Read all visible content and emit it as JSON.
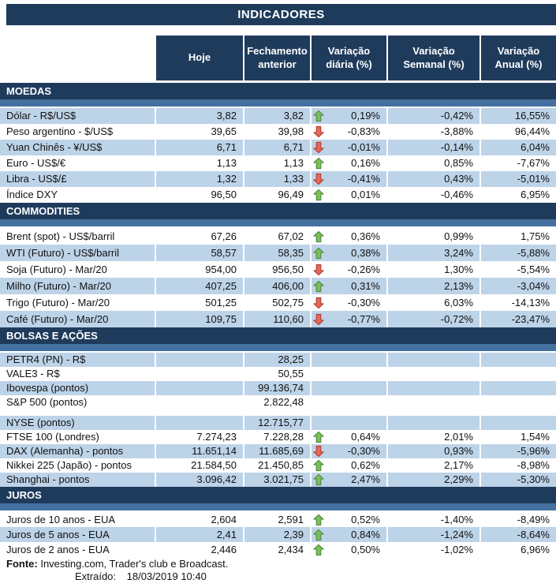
{
  "title": "INDICADORES",
  "columns": [
    "Hoje",
    "Fechamento anterior",
    "Variação diária (%)",
    "Variação Semanal (%)",
    "Variação Anual (%)"
  ],
  "colors": {
    "navy": "#1f3b5c",
    "stripe": "#44719f",
    "row_shaded": "#bdd3e8",
    "arrow_up_fill": "#7dbe5a",
    "arrow_up_stroke": "#4a8a3c",
    "arrow_down_fill": "#e26a5a",
    "arrow_down_stroke": "#b13a30"
  },
  "chart_data": {
    "type": "table",
    "sections": [
      {
        "name": "MOEDAS",
        "rows": [
          {
            "label": "Dólar - R$/US$",
            "hoje": "3,82",
            "fech": "3,82",
            "arrow": "up",
            "vd": "0,19%",
            "vs": "-0,42%",
            "va": "16,55%",
            "shaded": true
          },
          {
            "label": "Peso argentino - $/US$",
            "hoje": "39,65",
            "fech": "39,98",
            "arrow": "down",
            "vd": "-0,83%",
            "vs": "-3,88%",
            "va": "96,44%",
            "shaded": false
          },
          {
            "label": "Yuan Chinês - ¥/US$",
            "hoje": "6,71",
            "fech": "6,71",
            "arrow": "down",
            "vd": "-0,01%",
            "vs": "-0,14%",
            "va": "6,04%",
            "shaded": true
          },
          {
            "label": "Euro - US$/€",
            "hoje": "1,13",
            "fech": "1,13",
            "arrow": "up",
            "vd": "0,16%",
            "vs": "0,85%",
            "va": "-7,67%",
            "shaded": false
          },
          {
            "label": "Libra - US$/£",
            "hoje": "1,32",
            "fech": "1,33",
            "arrow": "down",
            "vd": "-0,41%",
            "vs": "0,43%",
            "va": "-5,01%",
            "shaded": true
          },
          {
            "label": "Índice DXY",
            "hoje": "96,50",
            "fech": "96,49",
            "arrow": "up",
            "vd": "0,01%",
            "vs": "-0,46%",
            "va": "6,95%",
            "shaded": false
          }
        ]
      },
      {
        "name": "COMMODITIES",
        "rows": [
          {
            "label": "Brent (spot) - US$/barril",
            "hoje": "67,26",
            "fech": "67,02",
            "arrow": "up",
            "vd": "0,36%",
            "vs": "0,99%",
            "va": "1,75%",
            "shaded": false
          },
          {
            "label": "WTI (Futuro) - US$/barril",
            "hoje": "58,57",
            "fech": "58,35",
            "arrow": "up",
            "vd": "0,38%",
            "vs": "3,24%",
            "va": "-5,88%",
            "shaded": true
          },
          {
            "label": "Soja (Futuro) - Mar/20",
            "hoje": "954,00",
            "fech": "956,50",
            "arrow": "down",
            "vd": "-0,26%",
            "vs": "1,30%",
            "va": "-5,54%",
            "shaded": false
          },
          {
            "label": "Milho (Futuro) - Mar/20",
            "hoje": "407,25",
            "fech": "406,00",
            "arrow": "up",
            "vd": "0,31%",
            "vs": "2,13%",
            "va": "-3,04%",
            "shaded": true
          },
          {
            "label": "Trigo (Futuro) - Mar/20",
            "hoje": "501,25",
            "fech": "502,75",
            "arrow": "down",
            "vd": "-0,30%",
            "vs": "6,03%",
            "va": "-14,13%",
            "shaded": false
          },
          {
            "label": "Café (Futuro) - Mar/20",
            "hoje": "109,75",
            "fech": "110,60",
            "arrow": "down",
            "vd": "-0,77%",
            "vs": "-0,72%",
            "va": "-23,47%",
            "shaded": true
          }
        ]
      },
      {
        "name": "BOLSAS E AÇÕES",
        "rows": [
          {
            "label": "PETR4 (PN) - R$",
            "hoje": "",
            "fech": "28,25",
            "arrow": null,
            "vd": "",
            "vs": "",
            "va": "",
            "shaded": true
          },
          {
            "label": "VALE3 - R$",
            "hoje": "",
            "fech": "50,55",
            "arrow": null,
            "vd": "",
            "vs": "",
            "va": "",
            "shaded": false
          },
          {
            "label": "Ibovespa (pontos)",
            "hoje": "",
            "fech": "99.136,74",
            "arrow": null,
            "vd": "",
            "vs": "",
            "va": "",
            "shaded": true
          },
          {
            "label": "S&P 500 (pontos)",
            "hoje": "",
            "fech": "2.822,48",
            "arrow": null,
            "vd": "",
            "vs": "",
            "va": "",
            "shaded": false
          },
          {
            "spacer": true
          },
          {
            "label": "NYSE (pontos)",
            "hoje": "",
            "fech": "12.715,77",
            "arrow": null,
            "vd": "",
            "vs": "",
            "va": "",
            "shaded": true
          },
          {
            "label": "FTSE 100 (Londres)",
            "hoje": "7.274,23",
            "fech": "7.228,28",
            "arrow": "up",
            "vd": "0,64%",
            "vs": "2,01%",
            "va": "1,54%",
            "shaded": false
          },
          {
            "label": "DAX (Alemanha) - pontos",
            "hoje": "11.651,14",
            "fech": "11.685,69",
            "arrow": "down",
            "vd": "-0,30%",
            "vs": "0,93%",
            "va": "-5,96%",
            "shaded": true
          },
          {
            "label": "Nikkei 225 (Japão) - pontos",
            "hoje": "21.584,50",
            "fech": "21.450,85",
            "arrow": "up",
            "vd": "0,62%",
            "vs": "2,17%",
            "va": "-8,98%",
            "shaded": false
          },
          {
            "label": "Shanghai - pontos",
            "hoje": "3.096,42",
            "fech": "3.021,75",
            "arrow": "up",
            "vd": "2,47%",
            "vs": "2,29%",
            "va": "-5,30%",
            "shaded": true
          }
        ]
      },
      {
        "name": "JUROS",
        "rows": [
          {
            "label": "Juros de 10 anos - EUA",
            "hoje": "2,604",
            "fech": "2,591",
            "arrow": "up",
            "vd": "0,52%",
            "vs": "-1,40%",
            "va": "-8,49%",
            "shaded": false
          },
          {
            "label": "Juros de 5 anos - EUA",
            "hoje": "2,41",
            "fech": "2,39",
            "arrow": "up",
            "vd": "0,84%",
            "vs": "-1,24%",
            "va": "-8,64%",
            "shaded": true
          },
          {
            "label": "Juros de 2 anos - EUA",
            "hoje": "2,446",
            "fech": "2,434",
            "arrow": "up",
            "vd": "0,50%",
            "vs": "-1,02%",
            "va": "6,96%",
            "shaded": false
          }
        ]
      }
    ]
  },
  "footer": {
    "fonte_label": "Fonte:",
    "fonte_text": "Investing.com, Trader's club e Broadcast.",
    "extraido_label": "Extraído:",
    "extraido_value": "18/03/2019 10:40"
  }
}
